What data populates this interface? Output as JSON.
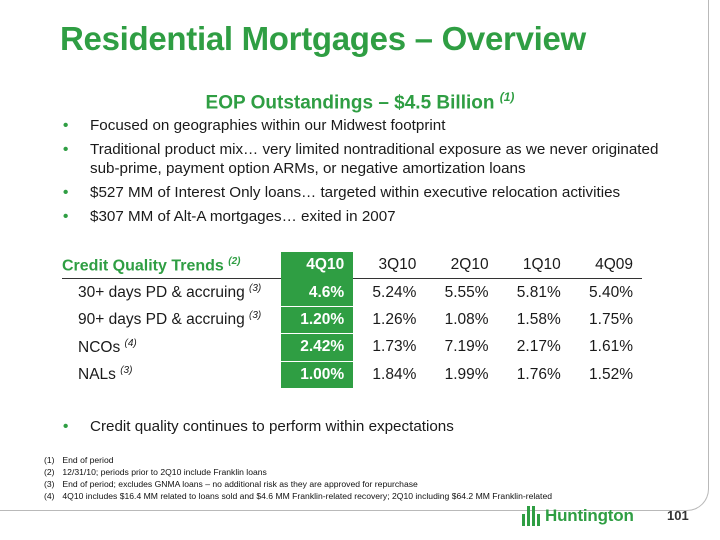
{
  "slide": {
    "title": "Residential Mortgages – Overview",
    "subtitle": "EOP Outstandings – $4.5 Billion",
    "subtitle_note": "(1)"
  },
  "bullets": [
    "Focused on geographies within our Midwest footprint",
    "Traditional product mix… very limited nontraditional exposure as we never originated sub-prime, payment option ARMs, or negative amortization loans",
    "$527 MM of Interest Only loans… targeted within executive relocation activities",
    "$307 MM of Alt-A mortgages… exited in 2007"
  ],
  "table": {
    "title": "Credit Quality Trends",
    "title_note": "(2)",
    "periods": [
      "4Q10",
      "3Q10",
      "2Q10",
      "1Q10",
      "4Q09"
    ],
    "rows": [
      {
        "label": "30+ days PD & accruing",
        "note": "(3)",
        "values": [
          "4.6%",
          "5.24%",
          "5.55%",
          "5.81%",
          "5.40%"
        ]
      },
      {
        "label": "90+ days PD & accruing",
        "note": "(3)",
        "values": [
          "1.20%",
          "1.26%",
          "1.08%",
          "1.58%",
          "1.75%"
        ]
      },
      {
        "label": "NCOs",
        "note": "(4)",
        "values": [
          "2.42%",
          "1.73%",
          "7.19%",
          "2.17%",
          "1.61%"
        ]
      },
      {
        "label": "NALs",
        "note": "(3)",
        "values": [
          "1.00%",
          "1.84%",
          "1.99%",
          "1.76%",
          "1.52%"
        ]
      }
    ],
    "highlight_color": "#2f9e43"
  },
  "bottom_bullet": "Credit quality continues to perform within expectations",
  "footnotes": [
    {
      "num": "(1)",
      "text": "End of period"
    },
    {
      "num": "(2)",
      "text": "12/31/10; periods prior to 2Q10 include Franklin loans"
    },
    {
      "num": "(3)",
      "text": "End of period; excludes GNMA loans – no additional risk as they are approved for repurchase"
    },
    {
      "num": "(4)",
      "text": "4Q10 includes $16.4 MM related to loans sold and $4.6 MM Franklin-related recovery; 2Q10 including $64.2 MM Franklin-related"
    }
  ],
  "footer": {
    "logo_text": "Huntington",
    "page_number": "101"
  },
  "colors": {
    "brand_green": "#2f9e43"
  }
}
